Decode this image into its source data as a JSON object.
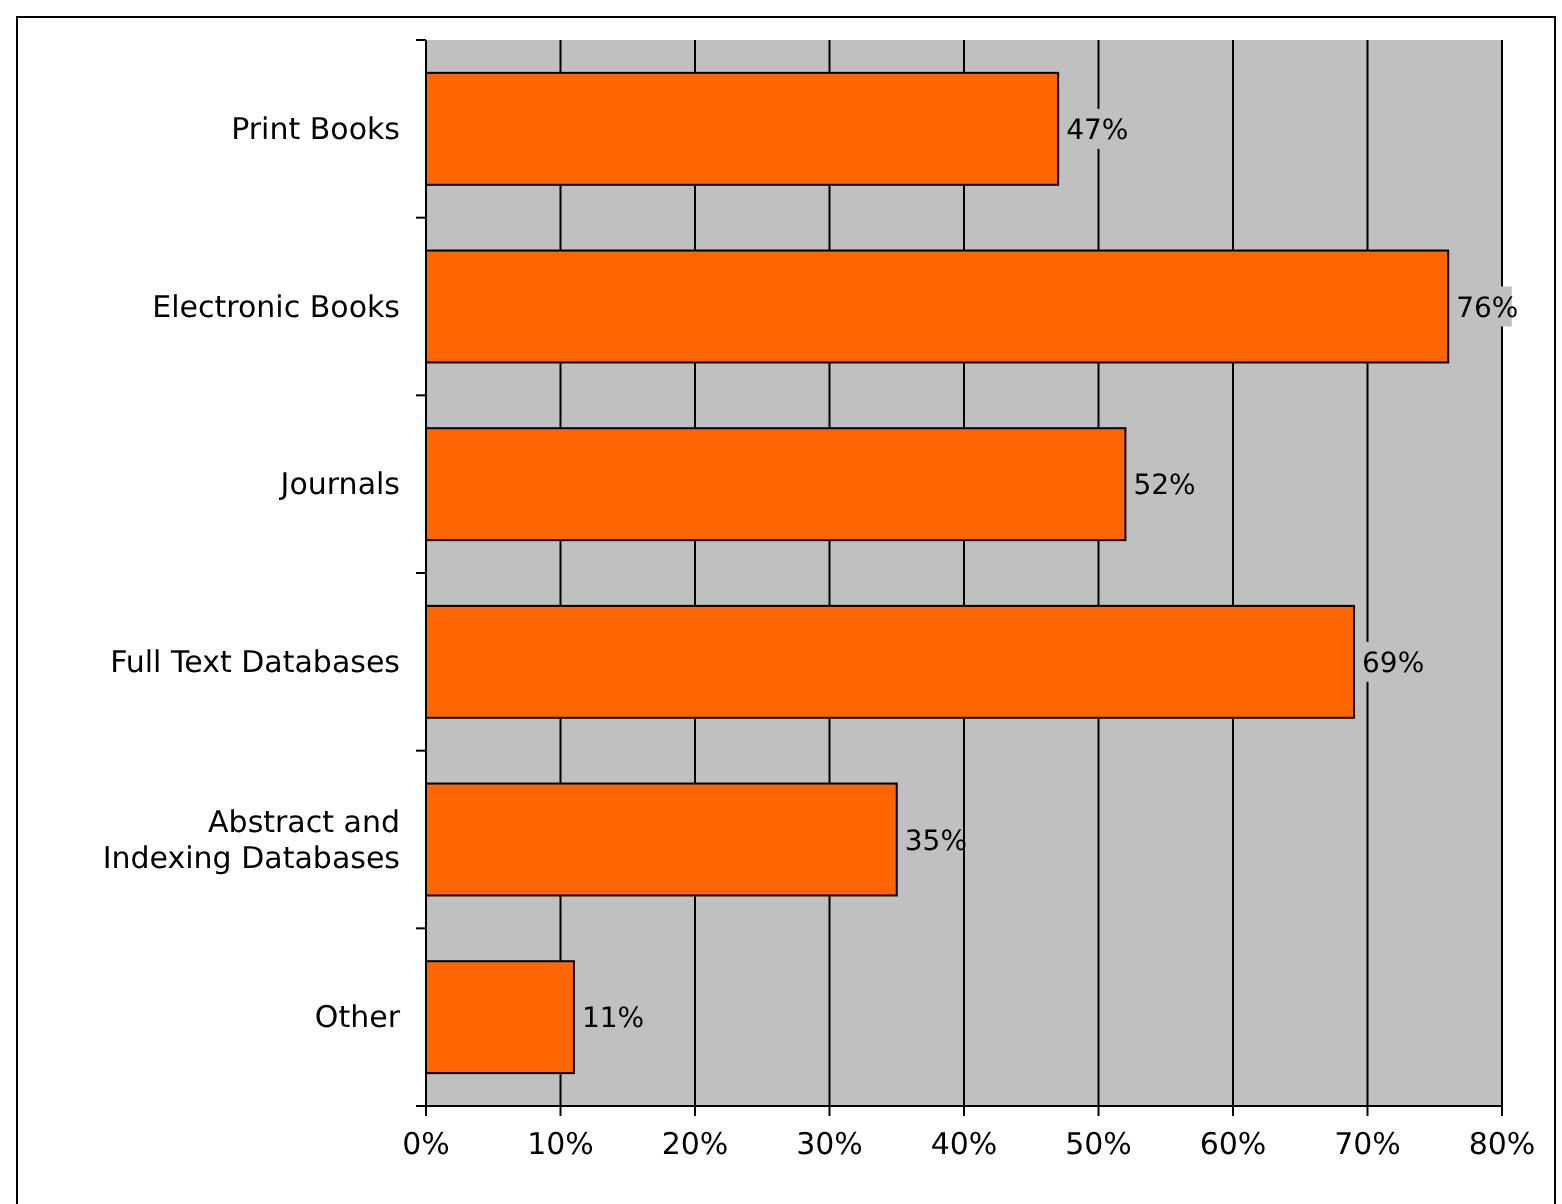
{
  "chart_data": {
    "type": "bar",
    "orientation": "horizontal",
    "categories": [
      "Print Books",
      "Electronic Books",
      "Journals",
      "Full Text Databases",
      "Abstract and Indexing Databases",
      "Other"
    ],
    "values": [
      47,
      76,
      52,
      69,
      35,
      11
    ],
    "value_labels": [
      "47%",
      "76%",
      "52%",
      "69%",
      "35%",
      "11%"
    ],
    "color": "#ff6600",
    "xlim": [
      0,
      80
    ],
    "xticks": [
      {
        "value": 0,
        "label": "0%"
      },
      {
        "value": 10,
        "label": "10%"
      },
      {
        "value": 20,
        "label": "20%"
      },
      {
        "value": 30,
        "label": "30%"
      },
      {
        "value": 40,
        "label": "40%"
      },
      {
        "value": 50,
        "label": "50%"
      },
      {
        "value": 60,
        "label": "60%"
      },
      {
        "value": 70,
        "label": "70%"
      },
      {
        "value": 80,
        "label": "80%"
      }
    ],
    "grid": "x"
  }
}
